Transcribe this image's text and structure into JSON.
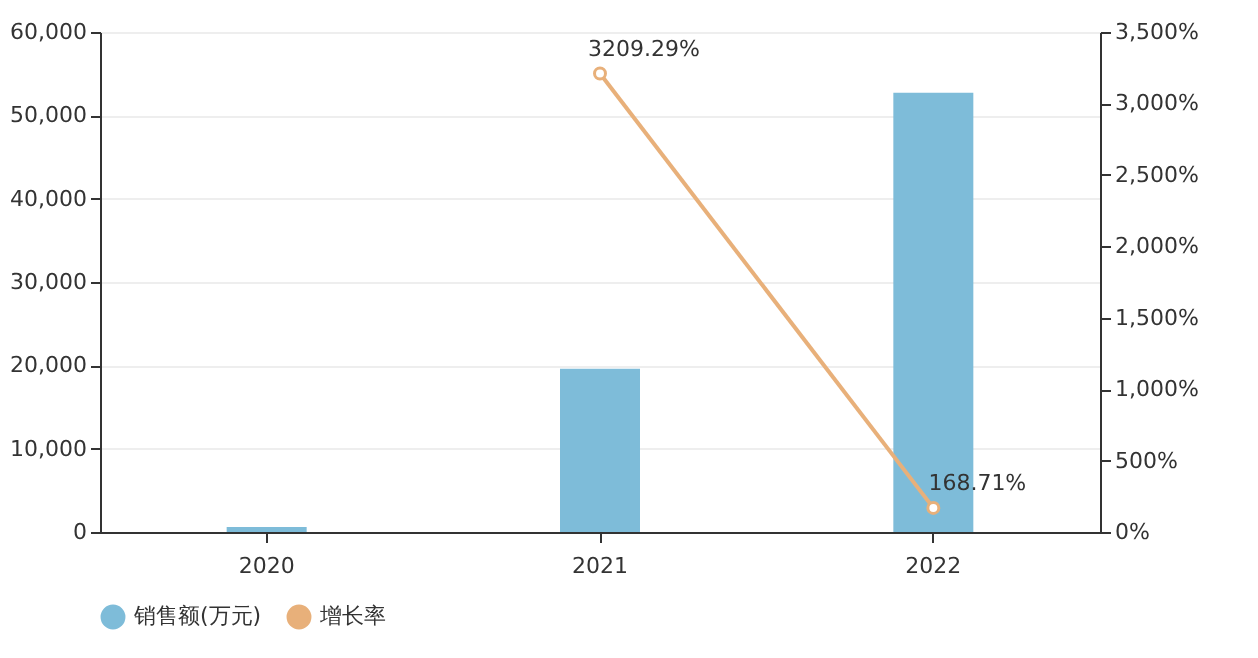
{
  "chart_data": {
    "type": "bar",
    "categories": [
      "2020",
      "2021",
      "2022"
    ],
    "series": [
      {
        "name": "销售额(万元)",
        "color": "#7ebcd9",
        "values": [
          600,
          19600,
          52700
        ]
      },
      {
        "name": "增长率",
        "type": "line",
        "axis": "y2",
        "color": "#e8b07a",
        "values": [
          null,
          3209.29,
          168.71
        ],
        "value_labels": [
          null,
          "3209.29%",
          "168.71%"
        ],
        "marker": "circle"
      }
    ],
    "ylim": [
      0,
      60000
    ],
    "yticks": [
      {
        "value": 0,
        "label": "0"
      },
      {
        "value": 10000,
        "label": "10,000"
      },
      {
        "value": 20000,
        "label": "20,000"
      },
      {
        "value": 30000,
        "label": "30,000"
      },
      {
        "value": 40000,
        "label": "40,000"
      },
      {
        "value": 50000,
        "label": "50,000"
      },
      {
        "value": 60000,
        "label": "60,000"
      }
    ],
    "y2lim": [
      0,
      3500
    ],
    "y2ticks": [
      {
        "value": 0,
        "label": "0%"
      },
      {
        "value": 500,
        "label": "500%"
      },
      {
        "value": 1000,
        "label": "1,000%"
      },
      {
        "value": 1500,
        "label": "1,500%"
      },
      {
        "value": 2000,
        "label": "2,000%"
      },
      {
        "value": 2500,
        "label": "2,500%"
      },
      {
        "value": 3000,
        "label": "3,000%"
      },
      {
        "value": 3500,
        "label": "3,500%"
      }
    ],
    "grid": "y",
    "legend": "bottom"
  }
}
